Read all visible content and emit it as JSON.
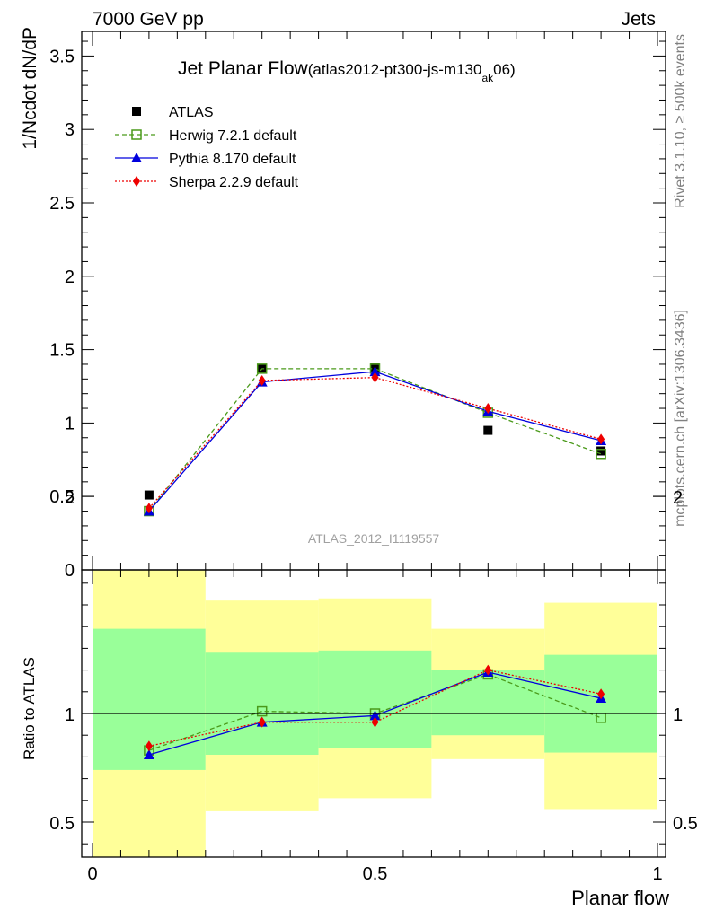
{
  "header": {
    "left": "7000 GeV pp",
    "right": "Jets"
  },
  "side_labels": {
    "rivet": "Rivet 3.1.10, ≥ 500k events",
    "mcplots": "mcplots.cern.ch [arXiv:1306.3436]"
  },
  "watermark": "ATLAS_2012_I1119557",
  "chart_data": [
    {
      "type": "line",
      "title_main": "Jet Planar Flow",
      "title_sub_pre": "(atlas2012-pt300-js-m130",
      "title_sub_subscript": "ak",
      "title_sub_post": "06)",
      "xlabel": "",
      "ylabel": "1/Ncdot dN/dP",
      "xlim": [
        0,
        1
      ],
      "ylim": [
        0,
        3.7
      ],
      "yticks": [
        {
          "v": 0,
          "label": "0"
        },
        {
          "v": 0.5,
          "label": "0.5"
        },
        {
          "v": 1,
          "label": "1"
        },
        {
          "v": 1.5,
          "label": "1.5"
        },
        {
          "v": 2,
          "label": "2"
        },
        {
          "v": 2.5,
          "label": "2.5"
        },
        {
          "v": 3,
          "label": "3"
        },
        {
          "v": 3.5,
          "label": "3.5"
        }
      ],
      "legend_position": "top-left",
      "series": [
        {
          "name": "ATLAS",
          "color": "#000000",
          "marker": "square",
          "line": "none",
          "x": [
            0.1,
            0.3,
            0.5,
            0.7,
            0.9
          ],
          "y": [
            0.51,
            1.37,
            1.38,
            0.95,
            0.81
          ]
        },
        {
          "name": "Herwig 7.2.1 default",
          "color": "#4a9a1a",
          "marker": "open-square",
          "line": "dashed",
          "x": [
            0.1,
            0.3,
            0.5,
            0.7,
            0.9
          ],
          "y": [
            0.4,
            1.37,
            1.37,
            1.07,
            0.79
          ]
        },
        {
          "name": "Pythia 8.170 default",
          "color": "#0000dd",
          "marker": "triangle",
          "line": "solid",
          "x": [
            0.1,
            0.3,
            0.5,
            0.7,
            0.9
          ],
          "y": [
            0.4,
            1.28,
            1.35,
            1.08,
            0.88
          ]
        },
        {
          "name": "Sherpa 2.2.9 default",
          "color": "#ee0000",
          "marker": "diamond",
          "line": "dotted",
          "x": [
            0.1,
            0.3,
            0.5,
            0.7,
            0.9
          ],
          "y": [
            0.42,
            1.29,
            1.31,
            1.1,
            0.89
          ]
        }
      ]
    },
    {
      "type": "line",
      "xlabel": "Planar flow",
      "ylabel": "Ratio to ATLAS",
      "xlim": [
        0,
        1
      ],
      "ylim": [
        0.34,
        2.24
      ],
      "xticks": [
        {
          "v": 0,
          "label": "0"
        },
        {
          "v": 0.5,
          "label": "0.5"
        },
        {
          "v": 1,
          "label": "1"
        }
      ],
      "yticks": [
        {
          "v": 0.5,
          "label": "0.5"
        },
        {
          "v": 1,
          "label": "1"
        },
        {
          "v": 2,
          "label": "2"
        }
      ],
      "reference_line": 1,
      "bands": [
        {
          "x0": 0.0,
          "x1": 0.2,
          "yellow": [
            0.34,
            1.7
          ],
          "green": [
            0.74,
            1.39
          ]
        },
        {
          "x0": 0.2,
          "x1": 0.4,
          "yellow": [
            0.55,
            1.52
          ],
          "green": [
            0.81,
            1.28
          ]
        },
        {
          "x0": 0.4,
          "x1": 0.6,
          "yellow": [
            0.61,
            1.53
          ],
          "green": [
            0.84,
            1.29
          ]
        },
        {
          "x0": 0.6,
          "x1": 0.8,
          "yellow": [
            0.79,
            1.39
          ],
          "green": [
            0.9,
            1.2
          ]
        },
        {
          "x0": 0.8,
          "x1": 1.0,
          "yellow": [
            0.56,
            1.51
          ],
          "green": [
            0.82,
            1.27
          ]
        }
      ],
      "band_colors": {
        "yellow": "#ffff99",
        "green": "#99ff99"
      },
      "series": [
        {
          "name": "Herwig 7.2.1 default",
          "color": "#4a9a1a",
          "marker": "open-square",
          "line": "dashed",
          "x": [
            0.1,
            0.3,
            0.5,
            0.7,
            0.9
          ],
          "y": [
            0.83,
            1.01,
            1.0,
            1.18,
            0.98
          ]
        },
        {
          "name": "Pythia 8.170 default",
          "color": "#0000dd",
          "marker": "triangle",
          "line": "solid",
          "x": [
            0.1,
            0.3,
            0.5,
            0.7,
            0.9
          ],
          "y": [
            0.81,
            0.96,
            0.99,
            1.19,
            1.07
          ]
        },
        {
          "name": "Sherpa 2.2.9 default",
          "color": "#ee0000",
          "marker": "diamond",
          "line": "dotted",
          "x": [
            0.1,
            0.3,
            0.5,
            0.7,
            0.9
          ],
          "y": [
            0.85,
            0.96,
            0.96,
            1.2,
            1.09
          ]
        }
      ]
    }
  ]
}
